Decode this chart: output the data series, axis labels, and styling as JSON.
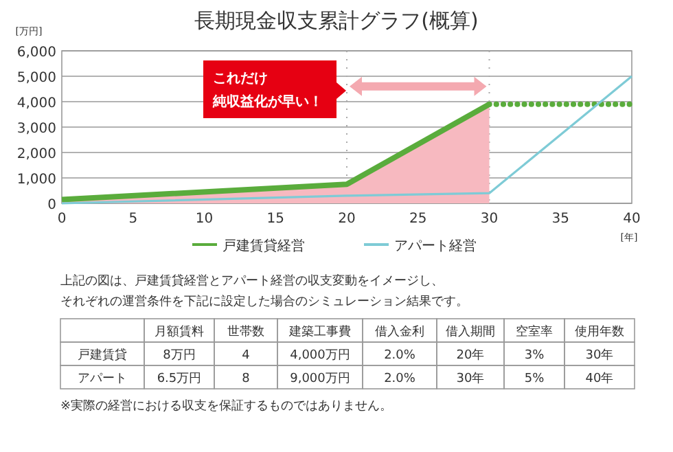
{
  "chart_data": {
    "type": "line",
    "title": "長期現金収支累計グラフ(概算)",
    "xlabel": "[年]",
    "ylabel": "[万円]",
    "xlim": [
      0,
      40
    ],
    "xticks": [
      0,
      5,
      10,
      15,
      20,
      25,
      30,
      35,
      40
    ],
    "ylim": [
      0,
      6000
    ],
    "yticks": [
      {
        "value": 0,
        "label": "0"
      },
      {
        "value": 1000,
        "label": "1,000"
      },
      {
        "value": 2000,
        "label": "2,000"
      },
      {
        "value": 3000,
        "label": "3,000"
      },
      {
        "value": 4000,
        "label": "4,000"
      },
      {
        "value": 5000,
        "label": "5,000"
      },
      {
        "value": 6000,
        "label": "6,000"
      }
    ],
    "grid": "y",
    "legend": "bottom",
    "series": [
      {
        "type": "area",
        "color": "#f7b9c0",
        "x": [
          0,
          20,
          30
        ],
        "values": [
          150,
          750,
          3900
        ]
      },
      {
        "name": "戸建賃貸経営",
        "color": "#5aac3c",
        "x": [
          0,
          20,
          30
        ],
        "values": [
          150,
          750,
          3900
        ]
      },
      {
        "color": "#5aac3c",
        "x": [
          30,
          40
        ],
        "values": [
          3900,
          3900
        ],
        "line_style": "dotted"
      },
      {
        "name": "アパート経営",
        "color": "#7ecbd6",
        "x": [
          0,
          20,
          30,
          40
        ],
        "values": [
          0,
          300,
          400,
          5000
        ]
      }
    ],
    "ref_lines": [
      {
        "axis": "x",
        "value": 20,
        "color": "#aaaaaa",
        "line_style": "dotted"
      },
      {
        "axis": "x",
        "value": 30,
        "color": "#aaaaaa",
        "line_style": "dotted"
      }
    ],
    "annotations": [
      "これだけ",
      "純収益化が早い！",
      "上記の図は、戸建賃貸経営とアパート経営の収支変動をイメージし、",
      "それぞれの運営条件を下記に設定した場合のシミュレーション結果です。",
      "月額賃料",
      "世帯数",
      "建築工事費",
      "借入金利",
      "借入期間",
      "空室率",
      "使用年数",
      "戸建賃貸",
      "8万円",
      "4",
      "4,000万円",
      "2.0%",
      "20年",
      "3%",
      "30年",
      "アパート",
      "6.5万円",
      "8",
      "9,000万円",
      "2.0%",
      "30年",
      "5%",
      "40年",
      "※実際の経営における収支を保証するものではありません。"
    ]
  }
}
